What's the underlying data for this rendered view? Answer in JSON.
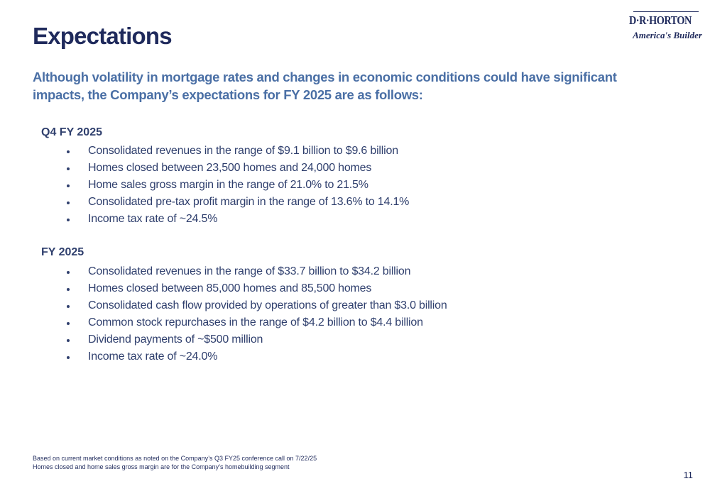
{
  "title": "Expectations",
  "logo": {
    "name": "D·R·HORTON",
    "tagline": "America's Builder"
  },
  "intro": "Although volatility in mortgage rates and changes in economic conditions could have significant impacts, the Company’s expectations for FY 2025 are as follows:",
  "sections": [
    {
      "heading": "Q4 FY 2025",
      "items": [
        "Consolidated revenues in the range of $9.1 billion to $9.6 billion",
        "Homes closed between 23,500 homes and 24,000 homes",
        "Home sales gross margin in the range of 21.0% to 21.5%",
        "Consolidated pre-tax profit margin in the range of 13.6% to 14.1%",
        "Income tax rate of ~24.5%"
      ]
    },
    {
      "heading": "FY 2025",
      "items": [
        "Consolidated revenues in the range of $33.7 billion to $34.2 billion",
        "Homes closed between 85,000 homes and 85,500 homes",
        "Consolidated cash flow provided by operations of greater than $3.0 billion",
        "Common stock repurchases in the range of $4.2 billion to $4.4 billion",
        "Dividend payments of ~$500 million",
        "Income tax rate of ~24.0%"
      ]
    }
  ],
  "footnotes": [
    "Based on current market conditions as noted on the Company’s Q3 FY25 conference call on 7/22/25",
    "Homes closed and home sales gross margin are for the Company’s homebuilding segment"
  ],
  "page_number": "11",
  "colors": {
    "title": "#1f2a5c",
    "intro": "#4a6fa5",
    "body": "#2f3f6d"
  }
}
